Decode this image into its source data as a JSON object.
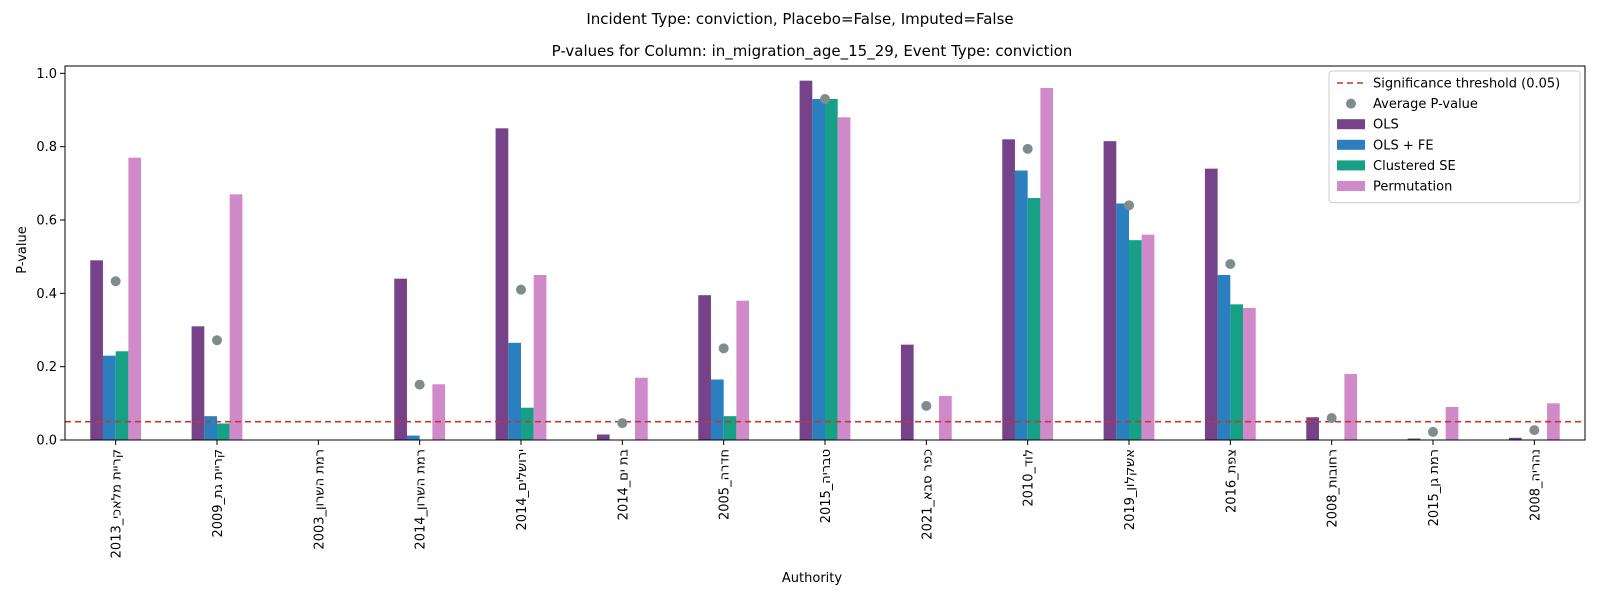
{
  "suptitle": "Incident Type: conviction, Placebo=False, Imputed=False",
  "chart_data": {
    "type": "bar",
    "title": "P-values for Column: in_migration_age_15_29, Event Type: conviction",
    "xlabel": "Authority",
    "ylabel": "P-value",
    "ylim": [
      0,
      1.02
    ],
    "yticks": [
      "0.0",
      "0.2",
      "0.4",
      "0.6",
      "0.8",
      "1.0"
    ],
    "legend_position": "top-right",
    "categories": [
      "קריית מלאכי_2013",
      "קריית גת_2009",
      "רמת השרון_2003",
      "רמת השרון_2014",
      "ירושלים_2014",
      "בת ים_2014",
      "חדרה_2005",
      "טבריה_2015",
      "כפר סבא_2021",
      "לוד_2010",
      "אשקלון_2019",
      "צפת_2016",
      "רחובות_2008",
      "רמת גן_2015",
      "נהריה_2008"
    ],
    "series": [
      {
        "name": "OLS",
        "color": "#76428a",
        "values": [
          0.49,
          0.31,
          0.0,
          0.44,
          0.85,
          0.015,
          0.395,
          0.98,
          0.26,
          0.82,
          0.815,
          0.74,
          0.062,
          0.004,
          0.006
        ]
      },
      {
        "name": "OLS + FE",
        "color": "#2a7fbf",
        "values": [
          0.23,
          0.065,
          0.0,
          0.012,
          0.265,
          0.0,
          0.165,
          0.93,
          0.0,
          0.735,
          0.645,
          0.45,
          0.0,
          0.0,
          0.0
        ]
      },
      {
        "name": "Clustered SE",
        "color": "#16a085",
        "values": [
          0.242,
          0.045,
          0.0,
          0.0,
          0.088,
          0.0,
          0.065,
          0.93,
          0.0,
          0.66,
          0.545,
          0.37,
          0.0,
          0.0,
          0.0
        ]
      },
      {
        "name": "Permutation",
        "color": "#d18ac9",
        "values": [
          0.77,
          0.67,
          0.0,
          0.152,
          0.45,
          0.17,
          0.38,
          0.88,
          0.12,
          0.96,
          0.56,
          0.36,
          0.18,
          0.09,
          0.1
        ]
      }
    ],
    "average": {
      "name": "Average P-value",
      "color": "#7f8c8d",
      "values": [
        0.433,
        0.272,
        0.0,
        0.151,
        0.41,
        0.046,
        0.25,
        0.93,
        0.093,
        0.794,
        0.64,
        0.48,
        0.06,
        0.022,
        0.027
      ]
    },
    "threshold": {
      "name": "Significance threshold (0.05)",
      "value": 0.05,
      "color": "#c0392b"
    }
  }
}
